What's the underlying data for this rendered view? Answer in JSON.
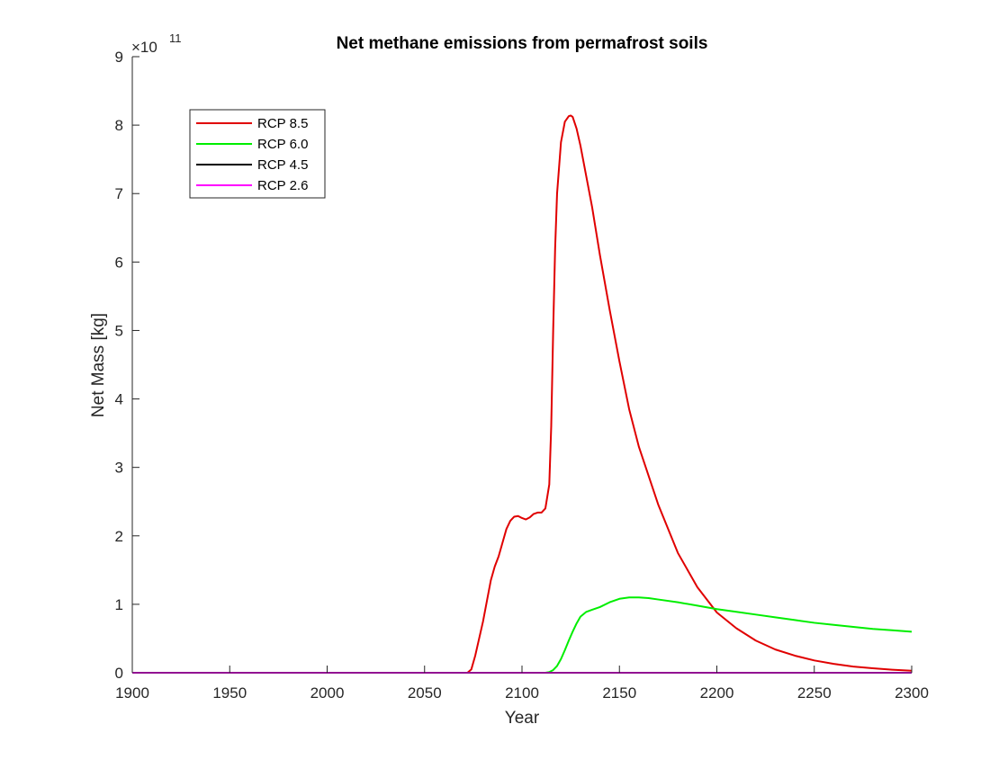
{
  "chart_data": {
    "type": "line",
    "title": "Net methane emissions from permafrost soils",
    "xlabel": "Year",
    "ylabel": "Net Mass [kg]",
    "y_exponent_base": "×10",
    "y_exponent_power": "11",
    "xlim": [
      1900,
      2300
    ],
    "ylim": [
      0,
      9
    ],
    "xticks": [
      1900,
      1950,
      2000,
      2050,
      2100,
      2150,
      2200,
      2250,
      2300
    ],
    "yticks": [
      0,
      1,
      2,
      3,
      4,
      5,
      6,
      7,
      8,
      9
    ],
    "legend_location": "top-left",
    "grid": false,
    "series": [
      {
        "name": "RCP 8.5",
        "color": "#e00000",
        "x": [
          1900,
          2050,
          2072,
          2074,
          2076,
          2078,
          2080,
          2082,
          2084,
          2086,
          2088,
          2090,
          2092,
          2094,
          2096,
          2098,
          2100,
          2102,
          2104,
          2106,
          2108,
          2110,
          2112,
          2114,
          2115,
          2116,
          2117,
          2118,
          2120,
          2122,
          2124,
          2125,
          2126,
          2128,
          2130,
          2133,
          2136,
          2140,
          2145,
          2150,
          2155,
          2160,
          2170,
          2180,
          2190,
          2200,
          2210,
          2220,
          2230,
          2240,
          2250,
          2260,
          2270,
          2280,
          2290,
          2300
        ],
        "values": [
          0,
          0,
          0,
          0.05,
          0.25,
          0.5,
          0.75,
          1.05,
          1.35,
          1.55,
          1.7,
          1.9,
          2.1,
          2.22,
          2.28,
          2.29,
          2.26,
          2.24,
          2.27,
          2.32,
          2.34,
          2.34,
          2.4,
          2.75,
          3.6,
          5.0,
          6.2,
          7.0,
          7.75,
          8.05,
          8.13,
          8.14,
          8.12,
          7.95,
          7.7,
          7.25,
          6.8,
          6.1,
          5.3,
          4.55,
          3.85,
          3.3,
          2.45,
          1.75,
          1.25,
          0.88,
          0.65,
          0.47,
          0.34,
          0.25,
          0.18,
          0.13,
          0.09,
          0.065,
          0.045,
          0.03
        ]
      },
      {
        "name": "RCP 6.0",
        "color": "#00ee00",
        "x": [
          1900,
          2112,
          2114,
          2116,
          2118,
          2120,
          2122,
          2124,
          2126,
          2128,
          2130,
          2133,
          2136,
          2140,
          2145,
          2150,
          2155,
          2160,
          2165,
          2170,
          2180,
          2190,
          2200,
          2210,
          2220,
          2230,
          2240,
          2250,
          2260,
          2270,
          2280,
          2290,
          2300
        ],
        "values": [
          0,
          0,
          0.01,
          0.04,
          0.1,
          0.2,
          0.33,
          0.47,
          0.6,
          0.72,
          0.82,
          0.89,
          0.92,
          0.96,
          1.03,
          1.08,
          1.1,
          1.1,
          1.09,
          1.07,
          1.03,
          0.98,
          0.93,
          0.89,
          0.85,
          0.81,
          0.77,
          0.73,
          0.7,
          0.67,
          0.64,
          0.62,
          0.6
        ]
      },
      {
        "name": "RCP 4.5",
        "color": "#000000",
        "x": [
          1900,
          2300
        ],
        "values": [
          0,
          0
        ]
      },
      {
        "name": "RCP 2.6",
        "color": "#ff00ff",
        "x": [
          1900,
          2300
        ],
        "values": [
          0,
          0
        ]
      }
    ]
  }
}
